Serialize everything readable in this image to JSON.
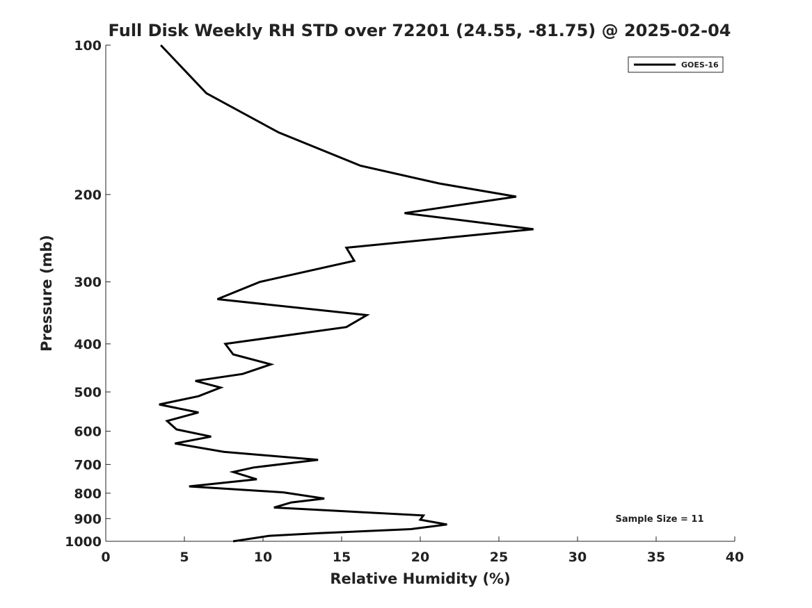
{
  "chart_data": {
    "type": "line",
    "title": "Full Disk Weekly RH STD over 72201 (24.55, -81.75) @ 2025-02-04",
    "xlabel": "Relative Humidity (%)",
    "ylabel": "Pressure (mb)",
    "xlim": [
      0,
      40
    ],
    "ylim": [
      100,
      1000
    ],
    "y_scale": "log",
    "y_reversed": true,
    "x_ticks": [
      0,
      5,
      10,
      15,
      20,
      25,
      30,
      35,
      40
    ],
    "y_ticks": [
      100,
      200,
      300,
      400,
      500,
      600,
      700,
      800,
      900,
      1000
    ],
    "legend_position": "top-right",
    "annotation": "Sample Size = 11",
    "series": [
      {
        "name": "GOES-16",
        "color": "#000000",
        "x": [
          3.5,
          6.4,
          11.0,
          16.2,
          21.2,
          26.1,
          19.0,
          27.2,
          15.3,
          15.8,
          9.8,
          7.1,
          16.6,
          15.3,
          7.6,
          8.1,
          10.5,
          8.7,
          5.7,
          7.3,
          5.9,
          3.4,
          5.9,
          3.9,
          4.5,
          6.7,
          4.4,
          7.5,
          13.5,
          9.4,
          8.1,
          9.6,
          5.3,
          11.3,
          13.9,
          11.8,
          10.7,
          20.2,
          20.0,
          21.7,
          19.4,
          13.6,
          10.4,
          8.1
        ],
        "y": [
          100,
          125,
          150,
          175,
          190,
          202,
          218,
          235,
          256,
          272,
          300,
          325,
          350,
          370,
          400,
          420,
          440,
          460,
          475,
          490,
          510,
          530,
          550,
          572,
          595,
          615,
          635,
          660,
          685,
          710,
          725,
          750,
          775,
          797,
          820,
          835,
          855,
          887,
          905,
          925,
          945,
          963,
          975,
          1000
        ]
      }
    ]
  }
}
